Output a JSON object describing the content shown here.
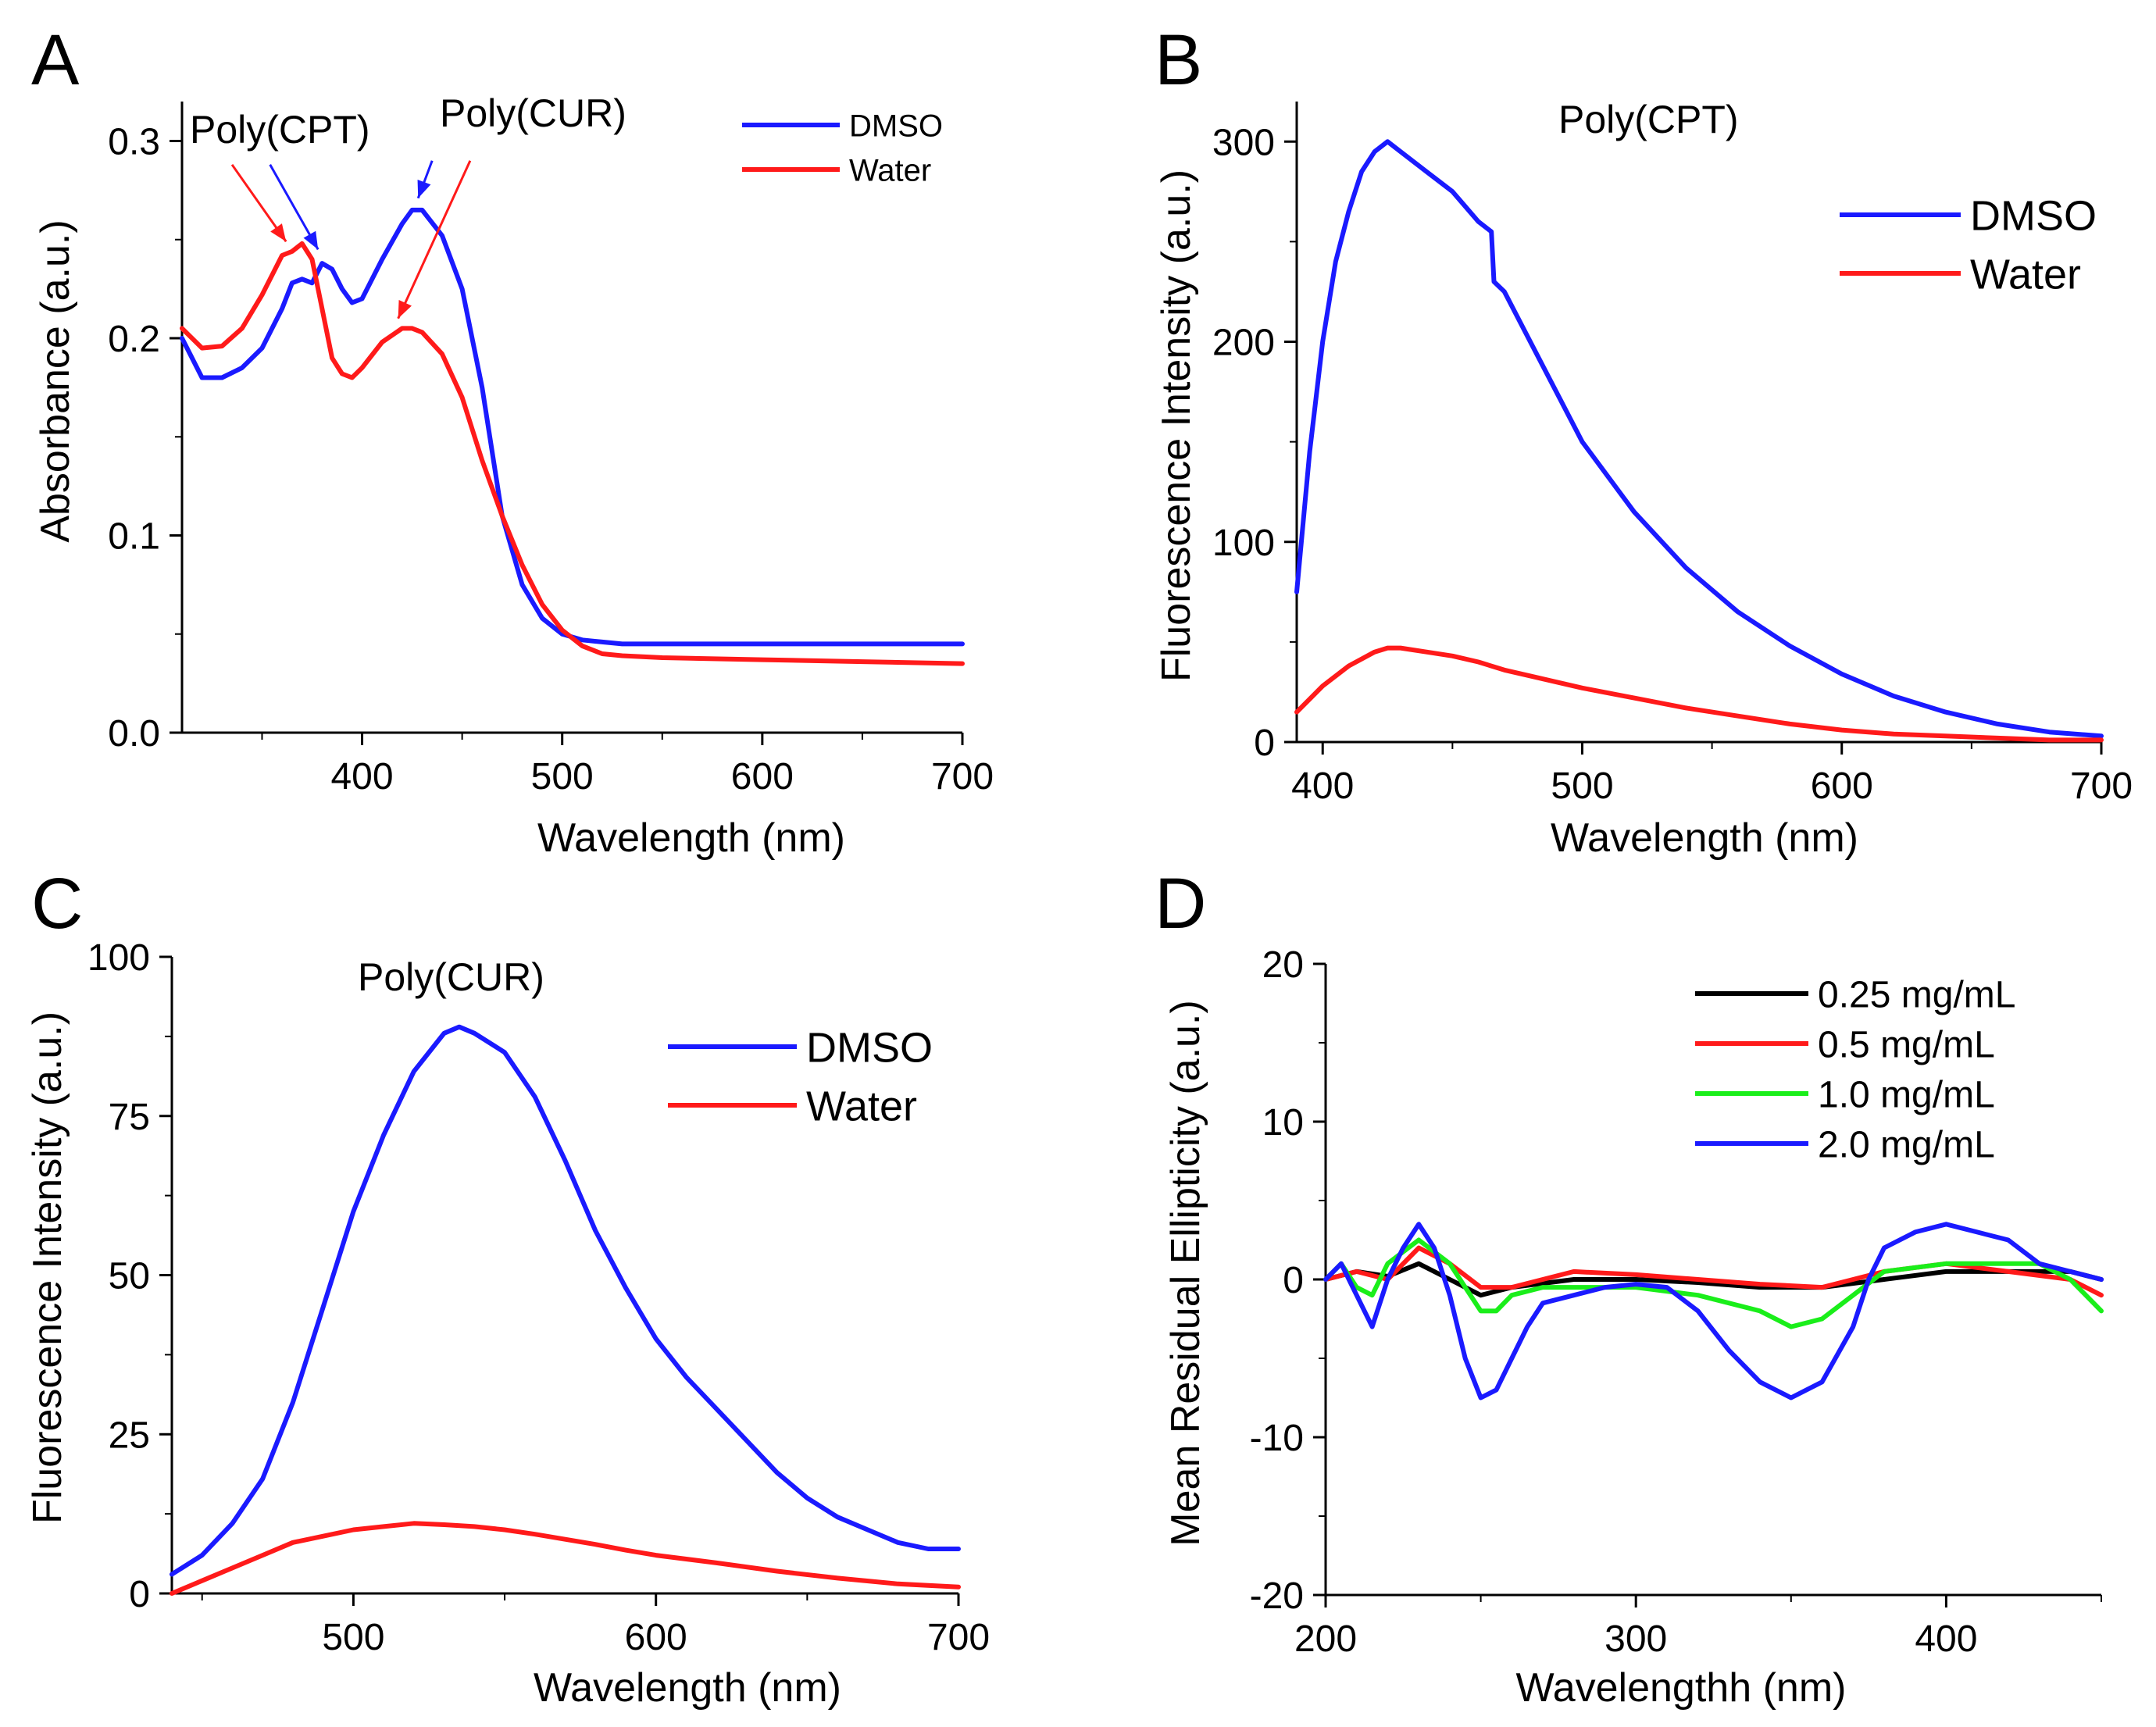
{
  "colors": {
    "blue": "#1a1aff",
    "red": "#ff1a1a",
    "green": "#1aee1a",
    "black": "#000000"
  },
  "chart_data": [
    {
      "panel": "A",
      "type": "line",
      "title": "",
      "xlabel": "Wavelength (nm)",
      "ylabel": "Absorbance (a.u.)",
      "xlim": [
        310,
        700
      ],
      "ylim": [
        0.0,
        0.32
      ],
      "xticks": [
        400,
        500,
        600,
        700
      ],
      "yticks": [
        0.0,
        0.1,
        0.2,
        0.3
      ],
      "ytick_labels": [
        "0.0",
        "0.1",
        "0.2",
        "0.3"
      ],
      "legend": "top-right",
      "series": [
        {
          "name": "DMSO",
          "color": "blue",
          "x": [
            310,
            320,
            330,
            340,
            350,
            360,
            365,
            370,
            375,
            380,
            385,
            390,
            395,
            400,
            410,
            420,
            425,
            430,
            440,
            450,
            460,
            470,
            480,
            490,
            500,
            510,
            520,
            530,
            550,
            600,
            650,
            700
          ],
          "y": [
            0.2,
            0.18,
            0.18,
            0.185,
            0.195,
            0.215,
            0.228,
            0.23,
            0.228,
            0.238,
            0.235,
            0.225,
            0.218,
            0.22,
            0.24,
            0.258,
            0.265,
            0.265,
            0.252,
            0.225,
            0.175,
            0.11,
            0.075,
            0.058,
            0.05,
            0.047,
            0.046,
            0.045,
            0.045,
            0.045,
            0.045,
            0.045
          ]
        },
        {
          "name": "Water",
          "color": "red",
          "x": [
            310,
            320,
            330,
            340,
            350,
            360,
            365,
            370,
            375,
            380,
            385,
            390,
            395,
            400,
            410,
            420,
            425,
            430,
            440,
            450,
            460,
            470,
            480,
            490,
            500,
            510,
            520,
            530,
            550,
            600,
            650,
            700
          ],
          "y": [
            0.205,
            0.195,
            0.196,
            0.205,
            0.222,
            0.242,
            0.244,
            0.248,
            0.24,
            0.215,
            0.19,
            0.182,
            0.18,
            0.185,
            0.198,
            0.205,
            0.205,
            0.203,
            0.192,
            0.17,
            0.138,
            0.11,
            0.085,
            0.065,
            0.052,
            0.044,
            0.04,
            0.039,
            0.038,
            0.037,
            0.036,
            0.035
          ]
        }
      ],
      "annotations": [
        {
          "text": "Poly(CPT)",
          "color": "red"
        },
        {
          "text": "Poly(CUR)",
          "color": "blue"
        }
      ]
    },
    {
      "panel": "B",
      "type": "line",
      "title": "Poly(CPT)",
      "xlabel": "Wavelength (nm)",
      "ylabel": "Fluorescence Intensity (a.u.)",
      "xlim": [
        390,
        700
      ],
      "ylim": [
        0,
        320
      ],
      "xticks": [
        400,
        500,
        600,
        700
      ],
      "yticks": [
        0,
        100,
        200,
        300
      ],
      "ytick_labels": [
        "0",
        "100",
        "200",
        "300"
      ],
      "legend": "top-right",
      "series": [
        {
          "name": "DMSO",
          "color": "blue",
          "x": [
            390,
            395,
            400,
            405,
            410,
            415,
            420,
            425,
            430,
            440,
            450,
            460,
            465,
            466,
            470,
            480,
            490,
            500,
            520,
            540,
            560,
            580,
            600,
            620,
            640,
            660,
            680,
            700
          ],
          "y": [
            75,
            145,
            200,
            240,
            265,
            285,
            295,
            300,
            295,
            285,
            275,
            260,
            255,
            230,
            225,
            200,
            175,
            150,
            115,
            87,
            65,
            48,
            34,
            23,
            15,
            9,
            5,
            3
          ]
        },
        {
          "name": "Water",
          "color": "red",
          "x": [
            390,
            400,
            410,
            420,
            425,
            430,
            440,
            450,
            460,
            470,
            480,
            500,
            520,
            540,
            560,
            580,
            600,
            620,
            640,
            660,
            680,
            700
          ],
          "y": [
            15,
            28,
            38,
            45,
            47,
            47,
            45,
            43,
            40,
            36,
            33,
            27,
            22,
            17,
            13,
            9,
            6,
            4,
            3,
            2,
            1,
            1
          ]
        }
      ]
    },
    {
      "panel": "C",
      "type": "line",
      "title": "Poly(CUR)",
      "xlabel": "Wavelength (nm)",
      "ylabel": "Fluorescence Intensity (a.u.)",
      "xlim": [
        440,
        700
      ],
      "ylim": [
        0,
        100
      ],
      "xticks": [
        500,
        600,
        700
      ],
      "yticks": [
        0,
        25,
        50,
        75,
        100
      ],
      "ytick_labels": [
        "0",
        "25",
        "50",
        "75",
        "100"
      ],
      "legend": "top-right",
      "series": [
        {
          "name": "DMSO",
          "color": "blue",
          "x": [
            440,
            450,
            460,
            470,
            480,
            490,
            500,
            510,
            520,
            530,
            535,
            540,
            550,
            560,
            570,
            580,
            590,
            600,
            610,
            620,
            630,
            640,
            650,
            660,
            670,
            680,
            690,
            700
          ],
          "y": [
            3,
            6,
            11,
            18,
            30,
            45,
            60,
            72,
            82,
            88,
            89,
            88,
            85,
            78,
            68,
            57,
            48,
            40,
            34,
            29,
            24,
            19,
            15,
            12,
            10,
            8,
            7,
            7
          ]
        },
        {
          "name": "Water",
          "color": "red",
          "x": [
            440,
            450,
            460,
            470,
            480,
            490,
            500,
            510,
            520,
            530,
            540,
            550,
            560,
            570,
            580,
            590,
            600,
            620,
            640,
            660,
            680,
            700
          ],
          "y": [
            0,
            2,
            4,
            6,
            8,
            9,
            10,
            10.5,
            11,
            10.8,
            10.5,
            10,
            9.3,
            8.5,
            7.7,
            6.8,
            6,
            4.8,
            3.5,
            2.4,
            1.5,
            1
          ]
        }
      ]
    },
    {
      "panel": "D",
      "type": "line",
      "title": "",
      "xlabel": "Wavelengthh (nm)",
      "ylabel": "Mean Residual Ellipticity (a.u.)",
      "xlim": [
        200,
        450
      ],
      "ylim": [
        -20,
        20
      ],
      "xticks": [
        200,
        300,
        400
      ],
      "yticks": [
        -20,
        -10,
        0,
        10,
        20
      ],
      "ytick_labels": [
        "-20",
        "-10",
        "0",
        "10",
        "20"
      ],
      "legend": "top-right",
      "series": [
        {
          "name": "0.25 mg/mL",
          "color": "black",
          "x": [
            200,
            210,
            220,
            230,
            240,
            250,
            260,
            280,
            300,
            320,
            340,
            360,
            380,
            400,
            420,
            440,
            450
          ],
          "y": [
            0,
            0.5,
            0.2,
            1,
            0,
            -1,
            -0.5,
            0,
            0,
            -0.2,
            -0.5,
            -0.5,
            0,
            0.5,
            0.5,
            0.5,
            0
          ]
        },
        {
          "name": "0.5 mg/mL",
          "color": "red",
          "x": [
            200,
            210,
            220,
            230,
            240,
            250,
            260,
            280,
            300,
            320,
            340,
            360,
            380,
            400,
            420,
            440,
            450
          ],
          "y": [
            0,
            0.5,
            0,
            2,
            1,
            -0.5,
            -0.5,
            0.5,
            0.3,
            0,
            -0.3,
            -0.5,
            0.5,
            1,
            0.5,
            0,
            -1
          ]
        },
        {
          "name": "1.0 mg/mL",
          "color": "green",
          "x": [
            200,
            205,
            210,
            215,
            220,
            230,
            240,
            250,
            255,
            260,
            270,
            280,
            300,
            320,
            340,
            350,
            360,
            370,
            380,
            400,
            420,
            430,
            440,
            450
          ],
          "y": [
            0,
            1,
            -0.5,
            -1,
            1,
            2.5,
            1,
            -2,
            -2,
            -1,
            -0.5,
            -0.5,
            -0.5,
            -1,
            -2,
            -3,
            -2.5,
            -1,
            0.5,
            1,
            1,
            1,
            0,
            -2
          ]
        },
        {
          "name": "2.0 mg/mL",
          "color": "blue",
          "x": [
            200,
            205,
            210,
            215,
            220,
            225,
            230,
            235,
            240,
            245,
            250,
            255,
            260,
            265,
            270,
            280,
            290,
            300,
            310,
            320,
            330,
            340,
            350,
            360,
            370,
            375,
            380,
            390,
            400,
            410,
            420,
            430,
            440,
            450
          ],
          "y": [
            0,
            1,
            -1,
            -3,
            0,
            2,
            3.5,
            2,
            -1,
            -5,
            -7.5,
            -7,
            -5,
            -3,
            -1.5,
            -1,
            -0.5,
            -0.3,
            -0.5,
            -2,
            -4.5,
            -6.5,
            -7.5,
            -6.5,
            -3,
            0,
            2,
            3,
            3.5,
            3,
            2.5,
            1,
            0.5,
            0
          ]
        }
      ]
    }
  ]
}
